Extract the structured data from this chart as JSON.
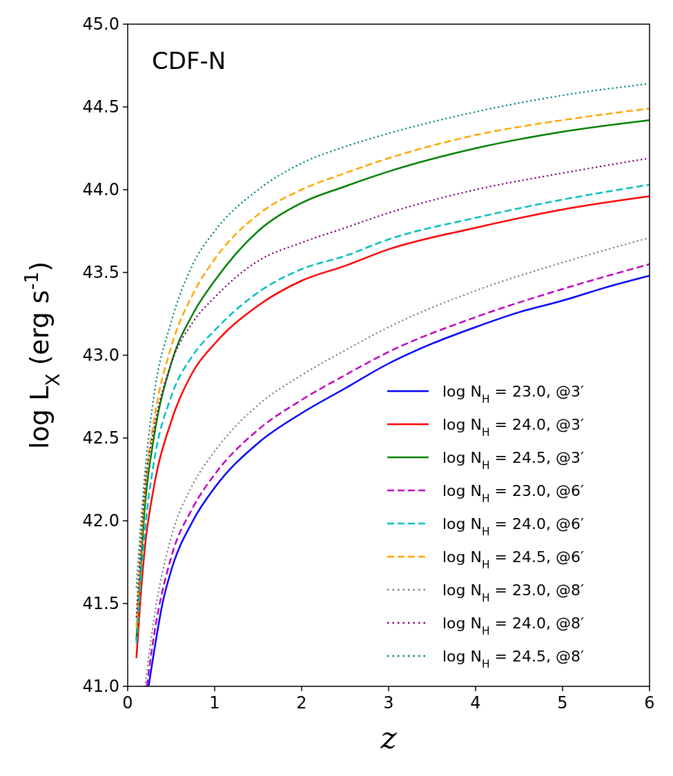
{
  "chart_data": {
    "type": "line",
    "xlabel": "z",
    "ylabel": "log L$_{X}$ (erg s$^{-1}$)",
    "annotations": [
      "CDF-N"
    ],
    "xlim": [
      0,
      6
    ],
    "ylim": [
      41,
      45
    ],
    "xticks": [
      0,
      1,
      2,
      3,
      4,
      5,
      6
    ],
    "yticks": [
      {
        "value": 41,
        "label": "41.0"
      },
      {
        "value": 41.5,
        "label": "41.5"
      },
      {
        "value": 42,
        "label": "42.0"
      },
      {
        "value": 42.5,
        "label": "42.5"
      },
      {
        "value": 43,
        "label": "43.0"
      },
      {
        "value": 43.5,
        "label": "43.5"
      },
      {
        "value": 44,
        "label": "44.0"
      },
      {
        "value": 44.5,
        "label": "44.5"
      },
      {
        "value": 45,
        "label": "45.0"
      }
    ],
    "legend": "bottom right",
    "grid": false,
    "series": [
      {
        "name": "log N$_{H}$ = 23.0, @3′",
        "color": "#0000ff",
        "line_style": "solid",
        "x": [
          0.24,
          0.3,
          0.4,
          0.5,
          0.75,
          1,
          1.5,
          2,
          2.5,
          3,
          3.5,
          4,
          4.5,
          5,
          5.5,
          6
        ],
        "values": [
          41.0,
          41.2,
          41.5,
          41.7,
          42.0,
          42.2,
          42.47,
          42.65,
          42.8,
          42.95,
          43.07,
          43.17,
          43.26,
          43.33,
          43.41,
          43.48
        ]
      },
      {
        "name": "log N$_{H}$ = 24.0, @3′",
        "color": "#ff0000",
        "line_style": "solid",
        "x": [
          0.1,
          0.15,
          0.2,
          0.3,
          0.5,
          0.75,
          1,
          1.5,
          2,
          2.5,
          3,
          4,
          5,
          6
        ],
        "values": [
          41.17,
          41.55,
          41.85,
          42.2,
          42.6,
          42.9,
          43.07,
          43.3,
          43.45,
          43.54,
          43.64,
          43.77,
          43.88,
          43.96
        ]
      },
      {
        "name": "log N$_{H}$ = 24.5, @3′",
        "color": "#008000",
        "line_style": "solid",
        "x": [
          0.1,
          0.2,
          0.3,
          0.5,
          0.75,
          1,
          1.5,
          2,
          2.5,
          3,
          4,
          5,
          6
        ],
        "values": [
          41.28,
          42.1,
          42.5,
          42.95,
          43.25,
          43.45,
          43.75,
          43.92,
          44.02,
          44.11,
          44.25,
          44.35,
          44.42
        ]
      },
      {
        "name": "log N$_{H}$ = 23.0, @6′",
        "color": "#bf00bf",
        "line_style": "dashed",
        "x": [
          0.22,
          0.3,
          0.5,
          0.75,
          1,
          1.5,
          2,
          2.5,
          3,
          4,
          5,
          6
        ],
        "values": [
          41.0,
          41.3,
          41.78,
          42.08,
          42.28,
          42.55,
          42.73,
          42.88,
          43.02,
          43.23,
          43.4,
          43.55
        ]
      },
      {
        "name": "log N$_{H}$ = 24.0, @6′",
        "color": "#00bfbf",
        "line_style": "dashed",
        "x": [
          0.1,
          0.2,
          0.3,
          0.5,
          0.75,
          1,
          1.5,
          2,
          2.5,
          3,
          4,
          5,
          6
        ],
        "values": [
          41.26,
          41.95,
          42.35,
          42.75,
          43.0,
          43.15,
          43.38,
          43.52,
          43.6,
          43.7,
          43.83,
          43.94,
          44.03
        ]
      },
      {
        "name": "log N$_{H}$ = 24.5, @6′",
        "color": "#ffa500",
        "line_style": "dashed",
        "x": [
          0.1,
          0.2,
          0.3,
          0.5,
          0.75,
          1,
          1.5,
          2,
          2.5,
          3,
          4,
          5,
          6
        ],
        "values": [
          41.35,
          42.2,
          42.6,
          43.05,
          43.37,
          43.58,
          43.85,
          44.0,
          44.1,
          44.19,
          44.33,
          44.42,
          44.49
        ]
      },
      {
        "name": "log N$_{H}$ = 23.0, @8′",
        "color": "#808080",
        "line_style": "dotted",
        "x": [
          0.2,
          0.3,
          0.5,
          0.75,
          1,
          1.5,
          2,
          2.5,
          3,
          4,
          5,
          6
        ],
        "values": [
          41.0,
          41.4,
          41.9,
          42.22,
          42.42,
          42.7,
          42.88,
          43.03,
          43.17,
          43.39,
          43.56,
          43.71
        ]
      },
      {
        "name": "log N$_{H}$ = 24.0, @8′",
        "color": "#800080",
        "line_style": "dotted",
        "x": [
          0.1,
          0.2,
          0.3,
          0.5,
          0.75,
          1,
          1.5,
          2,
          2.5,
          3,
          4,
          5,
          6
        ],
        "values": [
          41.42,
          42.2,
          42.55,
          42.95,
          43.2,
          43.35,
          43.57,
          43.68,
          43.77,
          43.86,
          44.0,
          44.1,
          44.19
        ]
      },
      {
        "name": "log N$_{H}$ = 24.5, @8′",
        "color": "#008080",
        "line_style": "dotted",
        "x": [
          0.1,
          0.2,
          0.3,
          0.5,
          0.75,
          1,
          1.5,
          2,
          2.5,
          3,
          4,
          5,
          6
        ],
        "values": [
          41.6,
          42.3,
          42.75,
          43.2,
          43.55,
          43.75,
          44.0,
          44.16,
          44.26,
          44.34,
          44.47,
          44.57,
          44.64
        ]
      }
    ]
  }
}
